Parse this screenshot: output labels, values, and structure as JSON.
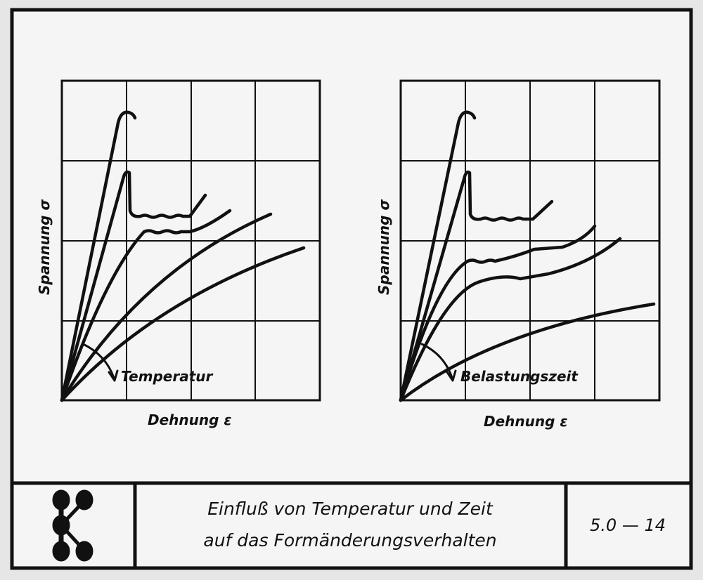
{
  "charts": [
    {
      "y_label": "Spannung σ",
      "x_label": "Dehnung ε",
      "arrow_label": "Temperatur"
    },
    {
      "y_label": "Spannung σ",
      "x_label": "Dehnung ε",
      "arrow_label": "Belastungszeit"
    }
  ],
  "footer": {
    "logo_icon": "molecule-k-logo",
    "title_line1": "Einfluß von Temperatur und Zeit",
    "title_line2": "auf das Formänderungsverhalten",
    "slide_number": "5.0 — 14"
  },
  "colors": {
    "ink": "#111111",
    "paper": "#f4f4f4"
  }
}
